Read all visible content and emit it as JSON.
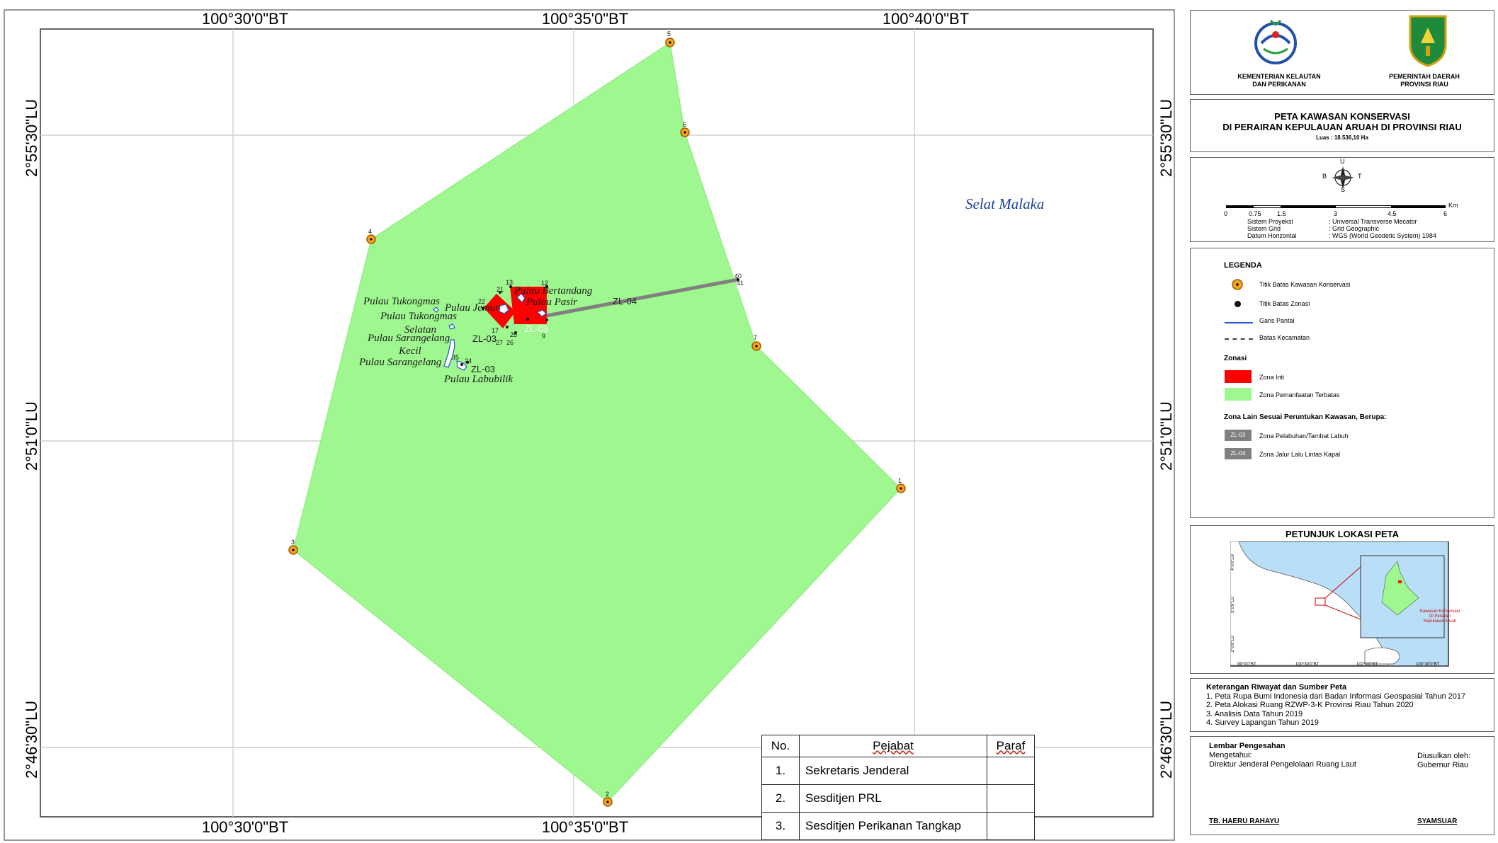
{
  "map": {
    "coords_top": [
      "100°30'0\"BT",
      "100°35'0\"BT",
      "100°40'0\"BT"
    ],
    "coords_bottom": [
      "100°30'0\"BT",
      "100°35'0\"BT"
    ],
    "coords_left": [
      "2°55'30\"LU",
      "2°51'0\"LU",
      "2°46'30\"LU"
    ],
    "coords_right": [
      "2°55'30\"LU",
      "2°51'0\"LU",
      "2°46'30\"LU"
    ],
    "sea_label": "Selat Malaka",
    "boundary_points": [
      "1",
      "2",
      "3",
      "4",
      "5",
      "6",
      "7"
    ],
    "route_points": [
      "40",
      "41"
    ],
    "island_labels": {
      "tukongmas": "Pulau Tukongmas",
      "tukongmas_selatan_1": "Pulau Tukongmas",
      "tukongmas_selatan_2": "Selatan",
      "sarangelang_kecil_1": "Pulau Sarangelang",
      "sarangelang_kecil_2": "Kecil",
      "sarangelang": "Pulau Sarangelang",
      "labubilik": "Pulau Labubilik",
      "jemur": "Pulau Jemur",
      "bertandang": "Pulau Bertandang",
      "pasir": "Pulau Pasir"
    },
    "zone_labels": {
      "zl04": "ZL-04",
      "zl03_a": "ZL-03",
      "zl03_b": "ZL-03",
      "zl03_c": "ZL-03"
    },
    "cluster_numbers": [
      "22",
      "21",
      "13",
      "12",
      "17",
      "25",
      "27",
      "26",
      "9",
      "24",
      "35"
    ]
  },
  "signatures": {
    "headers": [
      "No.",
      "Pejabat",
      "Paraf"
    ],
    "rows": [
      {
        "no": "1.",
        "pejabat": "Sekretaris Jenderal"
      },
      {
        "no": "2.",
        "pejabat": "Sesditjen PRL"
      },
      {
        "no": "3.",
        "pejabat": "Sesditjen Perikanan Tangkap"
      }
    ]
  },
  "header": {
    "org_left_1": "KEMENTERIAN KELAUTAN",
    "org_left_2": "DAN PERIKANAN",
    "org_right_1": "PEMERINTAH DAERAH",
    "org_right_2": "PROVINSI RIAU"
  },
  "title": {
    "line1": "PETA KAWASAN KONSERVASI",
    "line2": "DI PERAIRAN KEPULAUAN ARUAH DI PROVINSI RIAU",
    "area": "Luas : 18.536,10 Ha"
  },
  "compass": {
    "n": "U",
    "s": "S",
    "e": "T",
    "w": "B"
  },
  "scale": {
    "ticks": [
      "0",
      "0.75",
      "1.5",
      "3",
      "4.5",
      "6"
    ],
    "unit": "Km"
  },
  "projection": {
    "rows": [
      {
        "k": "Sistem Proyeksi",
        "v": ": Universal Transverse Mecator"
      },
      {
        "k": "Sistem Grid",
        "v": ": Grid Geographic"
      },
      {
        "k": "Datum Horizontal",
        "v": ": WGS (World Geodetic System) 1984"
      }
    ]
  },
  "legend": {
    "title": "LEGENDA",
    "items": [
      "Titik Batas Kawasan Konservasi",
      "Titik Batas Zonasi",
      "Garis Pantai",
      "Batas Kecamatan"
    ],
    "zonasi_title": "Zonasi",
    "zonasi": [
      "Zona Inti",
      "Zona Pemanfaatan Terbatas"
    ],
    "other_title": "Zona Lain Sesuai Peruntukan Kawasan, Berupa:",
    "other": [
      {
        "tag": "ZL-03",
        "label": "Zona Pelabuhan/Tambat Labuh"
      },
      {
        "tag": "ZL-04",
        "label": "Zona Jalur Lalu Lintas Kapal"
      }
    ],
    "colors": {
      "inti": "#ff0000",
      "pemanfaatan": "#9ef78f",
      "zl": "#808080",
      "point": "#f4a31b"
    }
  },
  "locator": {
    "title": "PETUNJUK LOKASI PETA",
    "lon_ticks": [
      "99°0'0\"BT",
      "100°30'0\"BT",
      "102°0'0\"BT",
      "103°30'0\"BT"
    ],
    "lat_ticks": [
      "4°0'0\"LU",
      "3°0'0\"LU",
      "2°0'0\"LU"
    ],
    "note_1": "Kawasan Konservasi",
    "note_2": "Di Perairan",
    "note_3": "Kepulauan Aruah"
  },
  "sources": {
    "title": "Keterangan Riwayat dan Sumber Peta",
    "items": [
      "1. Peta Rupa Bumi Indonesia dari Badan Informasi Geospasial Tahun 2017",
      "2. Peta Alokasi Ruang RZWP-3-K Provinsi Riau Tahun 2020",
      "3. Analisis Data Tahun 2019",
      "4. Survey Lapangan Tahun 2019"
    ]
  },
  "approval": {
    "title": "Lembar Pengesahan",
    "mengetahui": "Mengetahui:",
    "mengetahui_by": "Direktur Jenderal Pengelolaan Ruang Laut",
    "diusulkan": "Diusulkan oleh:",
    "diusulkan_by": "Gubernur Riau",
    "sign_left": "TB. HAERU RAHAYU",
    "sign_right": "SYAMSUAR"
  }
}
